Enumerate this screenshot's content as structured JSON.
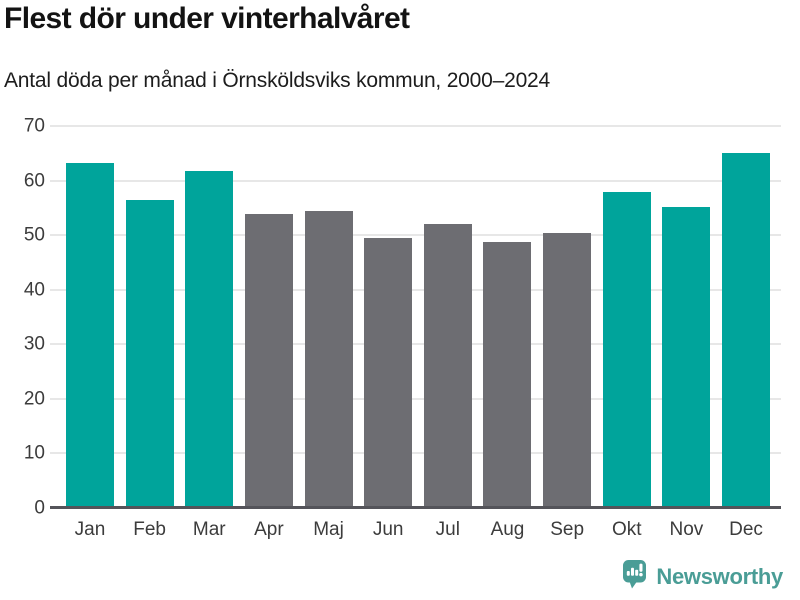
{
  "title": "Flest dör under vinterhalvåret",
  "subtitle": "Antal döda per månad i Örnsköldsviks kommun, 2000–2024",
  "footer": {
    "brand": "Newsworthy",
    "logo_icon": "bar-chart-speech-bubble-icon"
  },
  "colors": {
    "winter": "#00a49b",
    "summer": "#6d6d72",
    "grid": "#e7e7e7",
    "axis": "#54545a",
    "tick_text": "#3c3c3c",
    "brand": "#4a9d96"
  },
  "chart_data": {
    "type": "bar",
    "title": "Flest dör under vinterhalvåret",
    "subtitle": "Antal döda per månad i Örnsköldsviks kommun, 2000–2024",
    "categories": [
      "Jan",
      "Feb",
      "Mar",
      "Apr",
      "Maj",
      "Jun",
      "Jul",
      "Aug",
      "Sep",
      "Okt",
      "Nov",
      "Dec"
    ],
    "values": [
      63.3,
      56.5,
      61.7,
      53.8,
      54.4,
      49.4,
      52.1,
      48.7,
      50.4,
      57.9,
      55.2,
      65.0
    ],
    "bar_colors": [
      "winter",
      "winter",
      "winter",
      "summer",
      "summer",
      "summer",
      "summer",
      "summer",
      "summer",
      "winter",
      "winter",
      "winter"
    ],
    "xlabel": "",
    "ylabel": "",
    "ylim": [
      0,
      70
    ],
    "yticks": [
      0,
      10,
      20,
      30,
      40,
      50,
      60,
      70
    ],
    "grid": true,
    "legend": false
  }
}
